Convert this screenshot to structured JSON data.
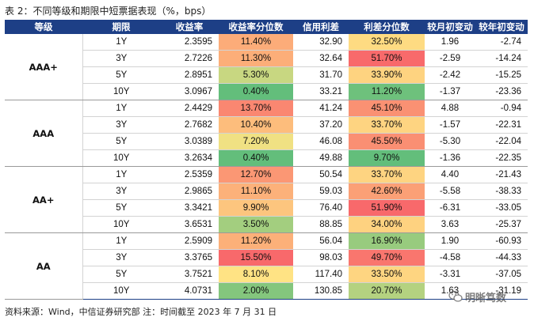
{
  "title": "表 2：不同等级和期限中短票据表现（%，bps）",
  "headers": [
    "等级",
    "期限",
    "收益率",
    "收益率分位数",
    "信用利差",
    "利差分位数",
    "较月初变动",
    "较年初变动"
  ],
  "colors": {
    "header_bg": "#1d3f86",
    "header_text": "#ffffff",
    "scale_low": "#63be7b",
    "scale_mid": "#ffe584",
    "scale_high": "#f8696b"
  },
  "groups": [
    {
      "grade": "AAA+",
      "rows": [
        {
          "term": "1Y",
          "yield": "2.3595",
          "yield_pct": "11.40%",
          "yield_pct_value": 11.4,
          "spread": "32.90",
          "spread_pct": "32.50%",
          "spread_pct_value": 32.5,
          "mtd": "1.96",
          "ytd": "-2.74"
        },
        {
          "term": "3Y",
          "yield": "2.7226",
          "yield_pct": "11.30%",
          "yield_pct_value": 11.3,
          "spread": "32.64",
          "spread_pct": "51.70%",
          "spread_pct_value": 51.7,
          "mtd": "-2.59",
          "ytd": "-14.24"
        },
        {
          "term": "5Y",
          "yield": "2.8951",
          "yield_pct": "5.30%",
          "yield_pct_value": 5.3,
          "spread": "31.70",
          "spread_pct": "33.90%",
          "spread_pct_value": 33.9,
          "mtd": "-2.42",
          "ytd": "-15.25"
        },
        {
          "term": "10Y",
          "yield": "3.0967",
          "yield_pct": "0.40%",
          "yield_pct_value": 0.4,
          "spread": "33.21",
          "spread_pct": "11.20%",
          "spread_pct_value": 11.2,
          "mtd": "-1.37",
          "ytd": "-23.36"
        }
      ]
    },
    {
      "grade": "AAA",
      "rows": [
        {
          "term": "1Y",
          "yield": "2.4429",
          "yield_pct": "13.70%",
          "yield_pct_value": 13.7,
          "spread": "41.24",
          "spread_pct": "45.10%",
          "spread_pct_value": 45.1,
          "mtd": "4.88",
          "ytd": "-0.94"
        },
        {
          "term": "3Y",
          "yield": "2.7682",
          "yield_pct": "10.40%",
          "yield_pct_value": 10.4,
          "spread": "37.20",
          "spread_pct": "33.70%",
          "spread_pct_value": 33.7,
          "mtd": "-1.57",
          "ytd": "-22.31"
        },
        {
          "term": "5Y",
          "yield": "3.0389",
          "yield_pct": "7.20%",
          "yield_pct_value": 7.2,
          "spread": "46.08",
          "spread_pct": "45.50%",
          "spread_pct_value": 45.5,
          "mtd": "-5.30",
          "ytd": "-22.04"
        },
        {
          "term": "10Y",
          "yield": "3.2634",
          "yield_pct": "0.40%",
          "yield_pct_value": 0.4,
          "spread": "49.88",
          "spread_pct": "9.70%",
          "spread_pct_value": 9.7,
          "mtd": "-1.36",
          "ytd": "-22.35"
        }
      ]
    },
    {
      "grade": "AA+",
      "rows": [
        {
          "term": "1Y",
          "yield": "2.5359",
          "yield_pct": "12.70%",
          "yield_pct_value": 12.7,
          "spread": "50.54",
          "spread_pct": "33.70%",
          "spread_pct_value": 33.7,
          "mtd": "4.40",
          "ytd": "-21.43"
        },
        {
          "term": "3Y",
          "yield": "2.9865",
          "yield_pct": "11.10%",
          "yield_pct_value": 11.1,
          "spread": "59.03",
          "spread_pct": "42.60%",
          "spread_pct_value": 42.6,
          "mtd": "-5.58",
          "ytd": "-38.33"
        },
        {
          "term": "5Y",
          "yield": "3.3421",
          "yield_pct": "9.90%",
          "yield_pct_value": 9.9,
          "spread": "76.40",
          "spread_pct": "51.90%",
          "spread_pct_value": 51.9,
          "mtd": "-6.31",
          "ytd": "-33.05"
        },
        {
          "term": "10Y",
          "yield": "3.6531",
          "yield_pct": "3.50%",
          "yield_pct_value": 3.5,
          "spread": "88.85",
          "spread_pct": "34.00%",
          "spread_pct_value": 34.0,
          "mtd": "3.63",
          "ytd": "-25.37"
        }
      ]
    },
    {
      "grade": "AA",
      "rows": [
        {
          "term": "1Y",
          "yield": "2.5909",
          "yield_pct": "11.20%",
          "yield_pct_value": 11.2,
          "spread": "56.04",
          "spread_pct": "16.90%",
          "spread_pct_value": 16.9,
          "mtd": "1.90",
          "ytd": "-60.93"
        },
        {
          "term": "3Y",
          "yield": "3.3765",
          "yield_pct": "15.50%",
          "yield_pct_value": 15.5,
          "spread": "98.03",
          "spread_pct": "49.70%",
          "spread_pct_value": 49.7,
          "mtd": "-4.58",
          "ytd": "-44.33"
        },
        {
          "term": "5Y",
          "yield": "3.7521",
          "yield_pct": "8.10%",
          "yield_pct_value": 8.1,
          "spread": "117.40",
          "spread_pct": "33.50%",
          "spread_pct_value": 33.5,
          "mtd": "-3.31",
          "ytd": "-37.05"
        },
        {
          "term": "10Y",
          "yield": "4.0731",
          "yield_pct": "2.00%",
          "yield_pct_value": 2.0,
          "spread": "130.85",
          "spread_pct": "20.70%",
          "spread_pct_value": 20.7,
          "mtd": "1.63",
          "ytd": "-31.19"
        }
      ]
    }
  ],
  "source": "资料来源：Wind，中信证券研究部  注：时间截至 2023 年 7 月 31 日",
  "watermark": "明晰笃数",
  "watermark_icon": "wechat-icon"
}
